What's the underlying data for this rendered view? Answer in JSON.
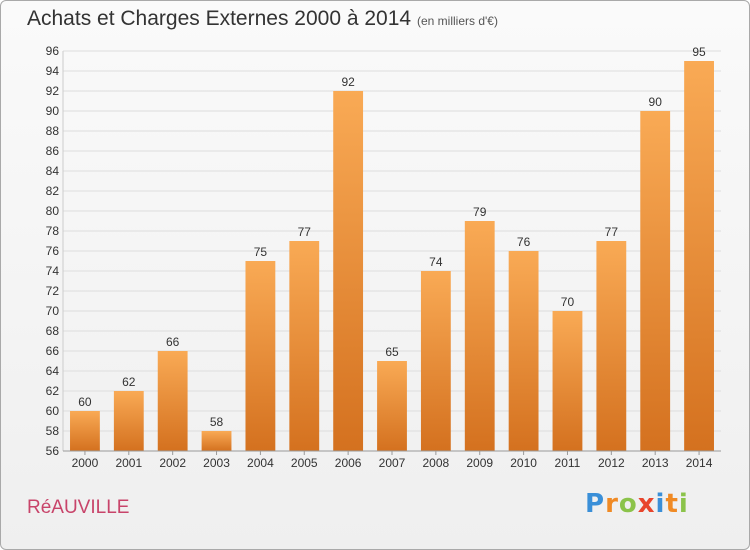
{
  "header": {
    "title": "Achats et Charges Externes 2000 à 2014",
    "subtitle": "(en milliers d'€)"
  },
  "footer": {
    "place": "RéAUVILLE",
    "brand_letters": [
      {
        "ch": "P",
        "color": "#3a8fd8"
      },
      {
        "ch": "r",
        "color": "#f08a24"
      },
      {
        "ch": "o",
        "color": "#8bc34a"
      },
      {
        "ch": "x",
        "color": "#e8452c"
      },
      {
        "ch": "i",
        "color": "#3a8fd8"
      },
      {
        "ch": "t",
        "color": "#f08a24"
      },
      {
        "ch": "i",
        "color": "#8bc34a"
      }
    ]
  },
  "colors": {
    "bar_top": "#f9aa55",
    "bar_bottom": "#d4711f",
    "grid": "#dddddd",
    "axis_text": "#333333"
  },
  "chart_data": {
    "type": "bar",
    "title": "Achats et Charges Externes 2000 à 2014",
    "subtitle": "(en milliers d'€)",
    "xlabel": "",
    "ylabel": "",
    "categories": [
      "2000",
      "2001",
      "2002",
      "2003",
      "2004",
      "2005",
      "2006",
      "2007",
      "2008",
      "2009",
      "2010",
      "2011",
      "2012",
      "2013",
      "2014"
    ],
    "values": [
      60,
      62,
      66,
      58,
      75,
      77,
      92,
      65,
      74,
      79,
      76,
      70,
      77,
      90,
      95
    ],
    "ylim": [
      56,
      96
    ],
    "yticks": [
      56,
      58,
      60,
      62,
      64,
      66,
      68,
      70,
      72,
      74,
      76,
      78,
      80,
      82,
      84,
      86,
      88,
      90,
      92,
      94,
      96
    ],
    "grid": true,
    "data_labels": true
  }
}
